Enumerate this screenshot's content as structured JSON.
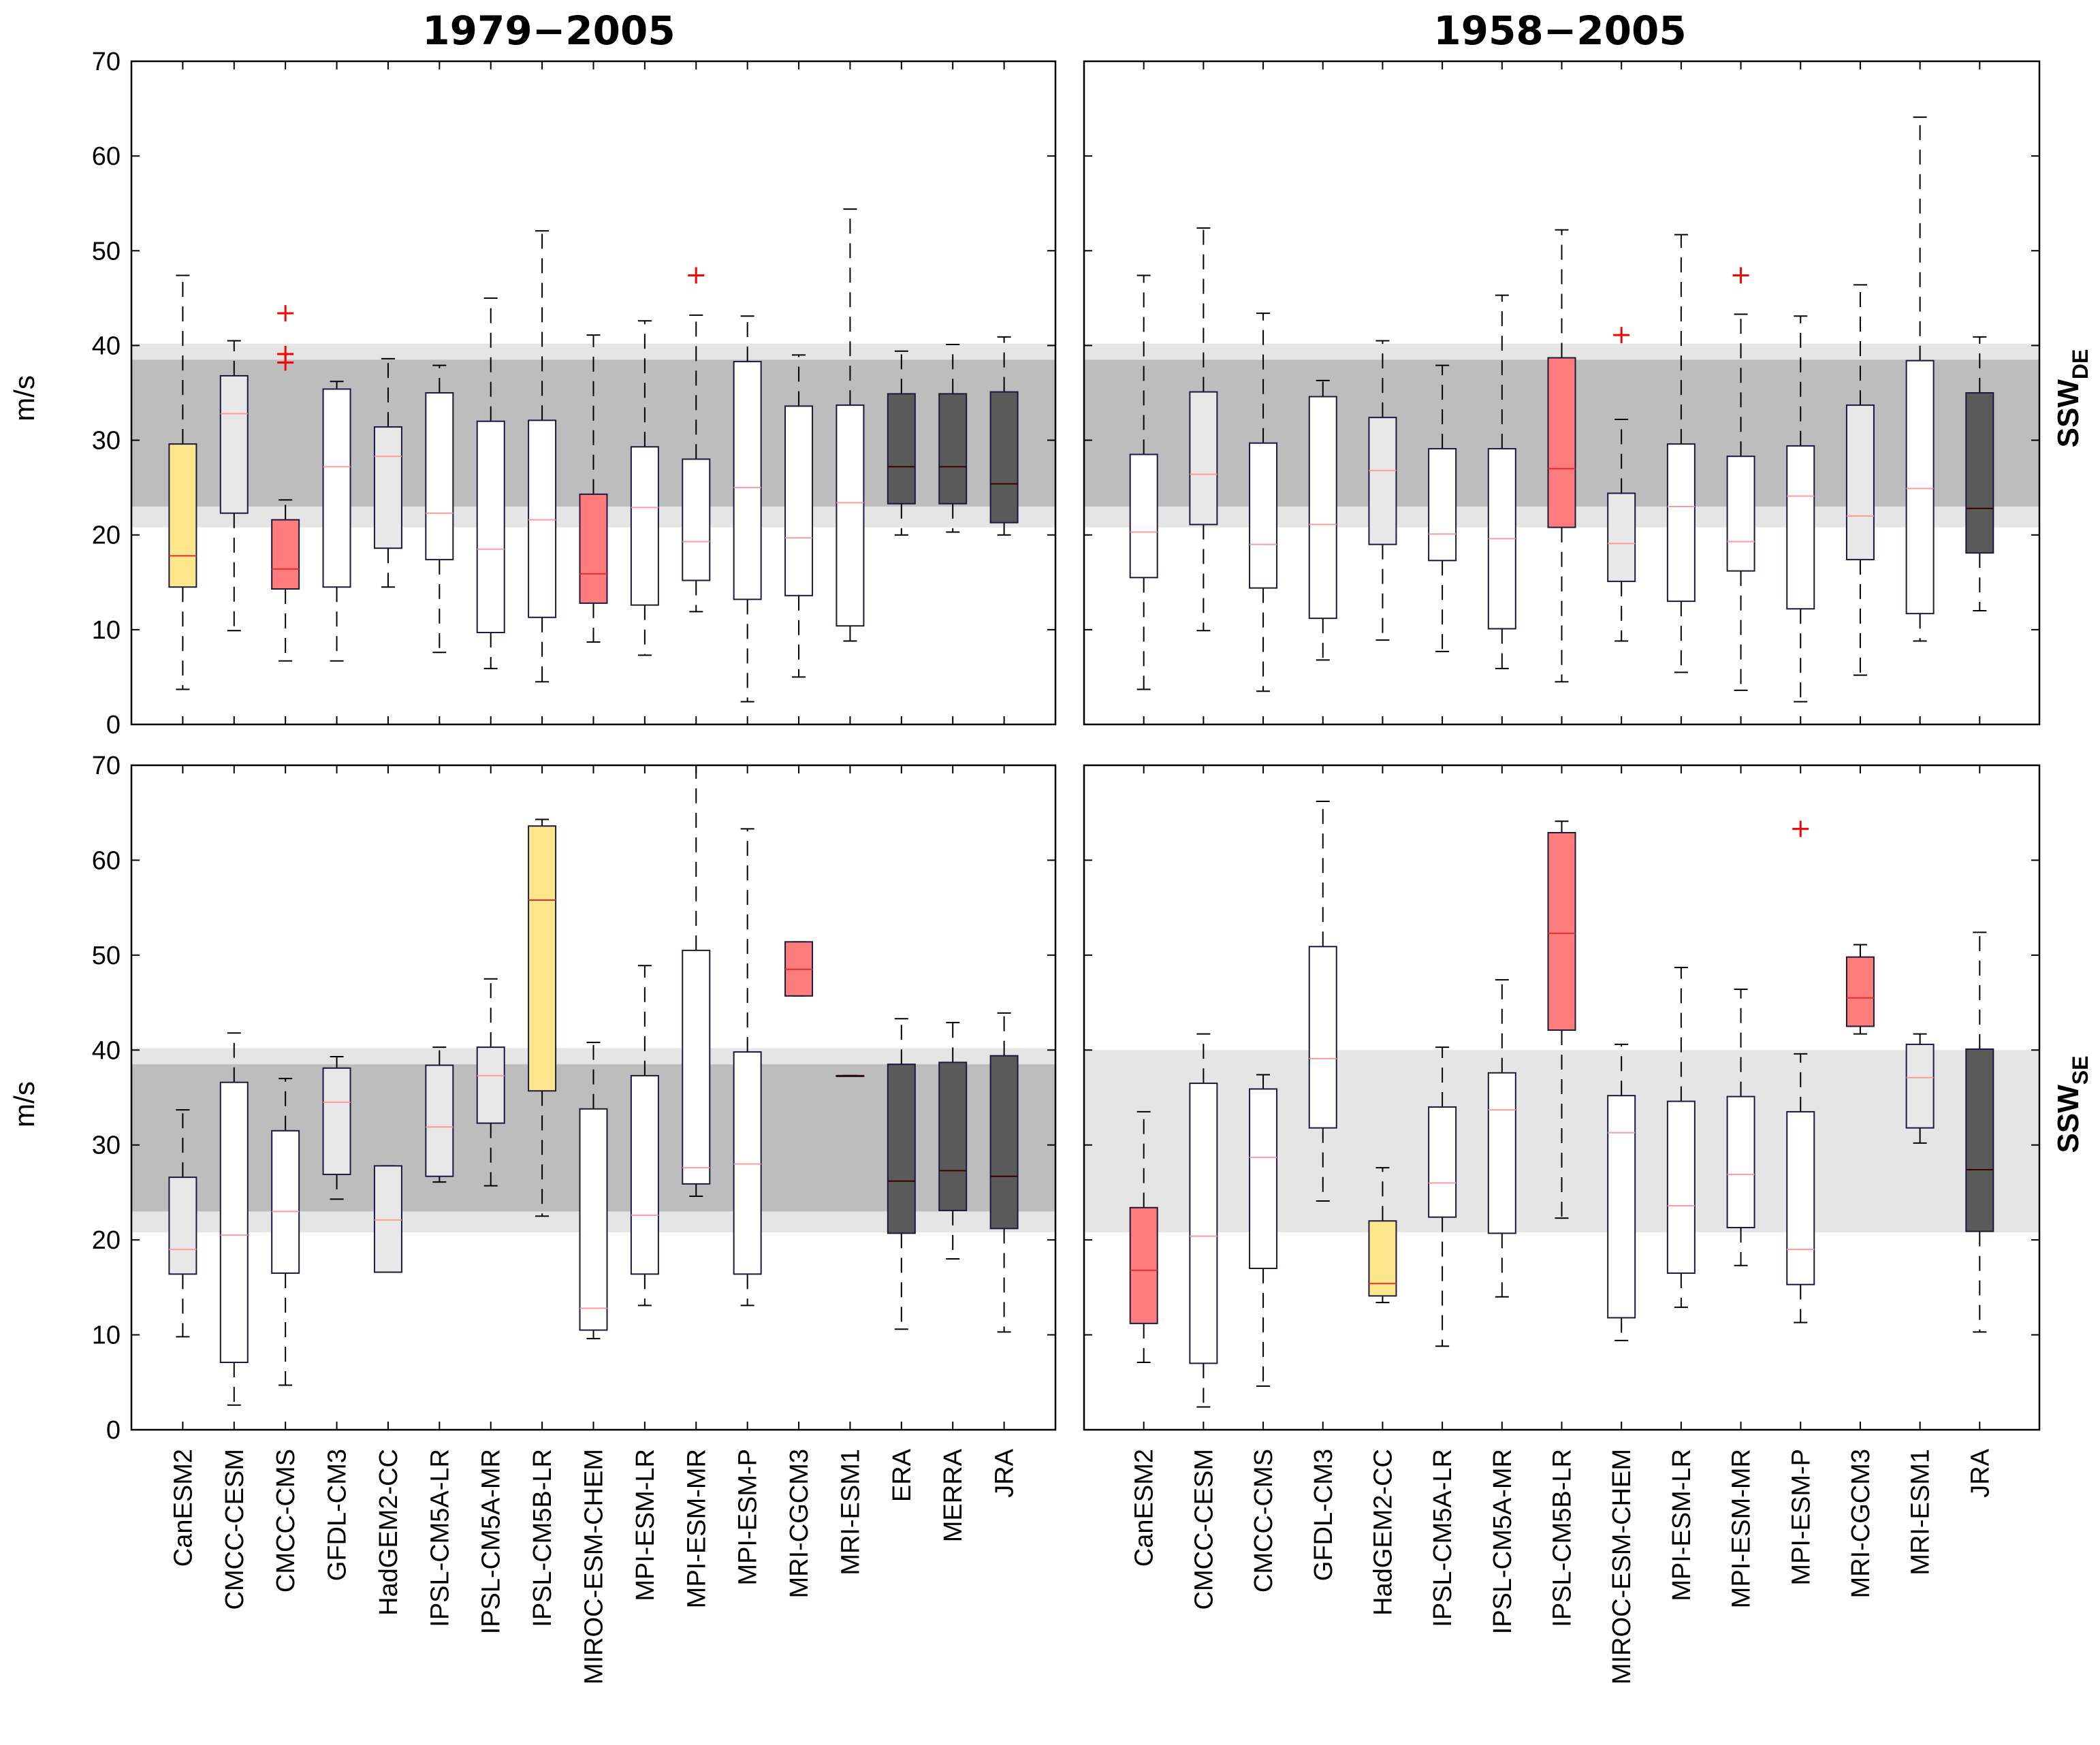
{
  "chart_data": {
    "type": "boxplot",
    "ylabel": "m/s",
    "ylim": [
      0,
      70
    ],
    "yticks": [
      0,
      10,
      20,
      30,
      40,
      50,
      60,
      70
    ],
    "col_titles": [
      "1979−2005",
      "1958−2005"
    ],
    "row_labels": [
      {
        "main": "SSW",
        "sub": "DE"
      },
      {
        "main": "SSW",
        "sub": "SE"
      }
    ],
    "colors": {
      "white": "#ffffff",
      "light": "#e8e8e8",
      "red": "#ff7c7c",
      "yellow": "#fde68c",
      "dark": "#5a5a5a",
      "band_outer": "#e5e5e5",
      "band_inner": "#bdbdbd",
      "median_red": "#e03030",
      "outlier": "#ff0000"
    },
    "panels": [
      {
        "name": "1979-2005 SSW DE",
        "band_outer": [
          20.8,
          40.2
        ],
        "band_inner": [
          23,
          38.5
        ],
        "categories": [
          "CanESM2",
          "CMCC-CESM",
          "CMCC-CMS",
          "GFDL-CM3",
          "HadGEM2-CC",
          "IPSL-CM5A-LR",
          "IPSL-CM5A-MR",
          "IPSL-CM5B-LR",
          "MIROC-ESM-CHEM",
          "MPI-ESM-LR",
          "MPI-ESM-MR",
          "MPI-ESM-P",
          "MRI-CGCM3",
          "MRI-ESM1",
          "ERA",
          "MERRA",
          "JRA"
        ],
        "boxes": [
          {
            "whislo": 3.7,
            "q1": 14.5,
            "med": 17.8,
            "q3": 29.6,
            "whishi": 47.4,
            "fill": "yellow",
            "fliers": []
          },
          {
            "whislo": 9.9,
            "q1": 22.3,
            "med": 32.8,
            "q3": 36.8,
            "whishi": 40.5,
            "fill": "light",
            "fliers": []
          },
          {
            "whislo": 6.7,
            "q1": 14.3,
            "med": 16.4,
            "q3": 21.6,
            "whishi": 23.7,
            "fill": "red",
            "fliers": [
              38.2,
              39.1,
              43.4
            ]
          },
          {
            "whislo": 6.7,
            "q1": 14.5,
            "med": 27.2,
            "q3": 35.4,
            "whishi": 36.2,
            "fill": "white",
            "fliers": []
          },
          {
            "whislo": 14.5,
            "q1": 18.6,
            "med": 28.3,
            "q3": 31.4,
            "whishi": 38.6,
            "fill": "light",
            "fliers": []
          },
          {
            "whislo": 7.6,
            "q1": 17.4,
            "med": 22.3,
            "q3": 35.0,
            "whishi": 37.9,
            "fill": "white",
            "fliers": []
          },
          {
            "whislo": 5.9,
            "q1": 9.7,
            "med": 18.5,
            "q3": 32.0,
            "whishi": 45.0,
            "fill": "white",
            "fliers": []
          },
          {
            "whislo": 4.5,
            "q1": 11.3,
            "med": 21.6,
            "q3": 32.1,
            "whishi": 52.1,
            "fill": "white",
            "fliers": []
          },
          {
            "whislo": 8.7,
            "q1": 12.8,
            "med": 15.9,
            "q3": 24.3,
            "whishi": 41.1,
            "fill": "red",
            "fliers": []
          },
          {
            "whislo": 7.3,
            "q1": 12.6,
            "med": 22.9,
            "q3": 29.3,
            "whishi": 42.6,
            "fill": "white",
            "fliers": []
          },
          {
            "whislo": 11.9,
            "q1": 15.2,
            "med": 19.3,
            "q3": 28.0,
            "whishi": 43.2,
            "fill": "white",
            "fliers": [
              47.4
            ]
          },
          {
            "whislo": 2.4,
            "q1": 13.2,
            "med": 25.0,
            "q3": 38.3,
            "whishi": 43.1,
            "fill": "white",
            "fliers": []
          },
          {
            "whislo": 5.0,
            "q1": 13.6,
            "med": 19.7,
            "q3": 33.6,
            "whishi": 39.0,
            "fill": "white",
            "fliers": []
          },
          {
            "whislo": 8.8,
            "q1": 10.4,
            "med": 23.4,
            "q3": 33.7,
            "whishi": 54.4,
            "fill": "white",
            "fliers": []
          },
          {
            "whislo": 20.0,
            "q1": 23.3,
            "med": 27.2,
            "q3": 34.9,
            "whishi": 39.4,
            "fill": "dark",
            "fliers": []
          },
          {
            "whislo": 20.3,
            "q1": 23.3,
            "med": 27.2,
            "q3": 34.9,
            "whishi": 40.1,
            "fill": "dark",
            "fliers": []
          },
          {
            "whislo": 20.0,
            "q1": 21.3,
            "med": 25.4,
            "q3": 35.1,
            "whishi": 40.9,
            "fill": "dark",
            "fliers": []
          }
        ]
      },
      {
        "name": "1958-2005 SSW DE",
        "band_outer": [
          20.8,
          40.2
        ],
        "band_inner": [
          23,
          38.5
        ],
        "categories": [
          "CanESM2",
          "CMCC-CESM",
          "CMCC-CMS",
          "GFDL-CM3",
          "HadGEM2-CC",
          "IPSL-CM5A-LR",
          "IPSL-CM5A-MR",
          "IPSL-CM5B-LR",
          "MIROC-ESM-CHEM",
          "MPI-ESM-LR",
          "MPI-ESM-MR",
          "MPI-ESM-P",
          "MRI-CGCM3",
          "MRI-ESM1",
          "JRA"
        ],
        "boxes": [
          {
            "whislo": 3.7,
            "q1": 15.5,
            "med": 20.3,
            "q3": 28.5,
            "whishi": 47.4,
            "fill": "white",
            "fliers": []
          },
          {
            "whislo": 9.9,
            "q1": 21.1,
            "med": 26.4,
            "q3": 35.1,
            "whishi": 52.4,
            "fill": "light",
            "fliers": []
          },
          {
            "whislo": 3.5,
            "q1": 14.4,
            "med": 19.0,
            "q3": 29.7,
            "whishi": 43.4,
            "fill": "white",
            "fliers": []
          },
          {
            "whislo": 6.8,
            "q1": 11.2,
            "med": 21.1,
            "q3": 34.6,
            "whishi": 36.3,
            "fill": "white",
            "fliers": []
          },
          {
            "whislo": 8.9,
            "q1": 19.0,
            "med": 26.8,
            "q3": 32.4,
            "whishi": 40.5,
            "fill": "light",
            "fliers": []
          },
          {
            "whislo": 7.7,
            "q1": 17.3,
            "med": 20.1,
            "q3": 29.1,
            "whishi": 37.9,
            "fill": "white",
            "fliers": []
          },
          {
            "whislo": 5.9,
            "q1": 10.1,
            "med": 19.6,
            "q3": 29.1,
            "whishi": 45.3,
            "fill": "white",
            "fliers": []
          },
          {
            "whislo": 4.5,
            "q1": 20.8,
            "med": 27.0,
            "q3": 38.7,
            "whishi": 52.2,
            "fill": "red",
            "fliers": []
          },
          {
            "whislo": 8.8,
            "q1": 15.1,
            "med": 19.1,
            "q3": 24.4,
            "whishi": 32.2,
            "fill": "light",
            "fliers": [
              41.1
            ]
          },
          {
            "whislo": 5.5,
            "q1": 13.0,
            "med": 23.0,
            "q3": 29.6,
            "whishi": 51.7,
            "fill": "white",
            "fliers": []
          },
          {
            "whislo": 3.6,
            "q1": 16.2,
            "med": 19.3,
            "q3": 28.3,
            "whishi": 43.3,
            "fill": "white",
            "fliers": [
              47.4
            ]
          },
          {
            "whislo": 2.4,
            "q1": 12.2,
            "med": 24.1,
            "q3": 29.4,
            "whishi": 43.1,
            "fill": "white",
            "fliers": []
          },
          {
            "whislo": 5.2,
            "q1": 17.4,
            "med": 22.0,
            "q3": 33.7,
            "whishi": 46.4,
            "fill": "light",
            "fliers": []
          },
          {
            "whislo": 8.8,
            "q1": 11.7,
            "med": 24.9,
            "q3": 38.4,
            "whishi": 64.1,
            "fill": "white",
            "fliers": []
          },
          {
            "whislo": 12.0,
            "q1": 18.1,
            "med": 22.8,
            "q3": 35.0,
            "whishi": 40.9,
            "fill": "dark",
            "fliers": []
          }
        ]
      },
      {
        "name": "1979-2005 SSW SE",
        "band_outer": [
          20.8,
          40.2
        ],
        "band_inner": [
          23,
          38.5
        ],
        "categories": [
          "CanESM2",
          "CMCC-CESM",
          "CMCC-CMS",
          "GFDL-CM3",
          "HadGEM2-CC",
          "IPSL-CM5A-LR",
          "IPSL-CM5A-MR",
          "IPSL-CM5B-LR",
          "MIROC-ESM-CHEM",
          "MPI-ESM-LR",
          "MPI-ESM-MR",
          "MPI-ESM-P",
          "MRI-CGCM3",
          "MRI-ESM1",
          "ERA",
          "MERRA",
          "JRA"
        ],
        "boxes": [
          {
            "whislo": 9.8,
            "q1": 16.4,
            "med": 19.0,
            "q3": 26.6,
            "whishi": 33.7,
            "fill": "light",
            "fliers": []
          },
          {
            "whislo": 2.6,
            "q1": 7.1,
            "med": 20.5,
            "q3": 36.6,
            "whishi": 41.8,
            "fill": "white",
            "fliers": []
          },
          {
            "whislo": 4.7,
            "q1": 16.5,
            "med": 23.0,
            "q3": 31.5,
            "whishi": 37.0,
            "fill": "white",
            "fliers": []
          },
          {
            "whislo": 24.3,
            "q1": 26.9,
            "med": 34.5,
            "q3": 38.1,
            "whishi": 39.3,
            "fill": "light",
            "fliers": []
          },
          {
            "whislo": 16.6,
            "q1": 16.6,
            "med": 22.1,
            "q3": 27.8,
            "whishi": 27.8,
            "fill": "light",
            "fliers": []
          },
          {
            "whislo": 26.1,
            "q1": 26.7,
            "med": 31.9,
            "q3": 38.4,
            "whishi": 40.3,
            "fill": "light",
            "fliers": []
          },
          {
            "whislo": 25.7,
            "q1": 32.3,
            "med": 37.3,
            "q3": 40.3,
            "whishi": 47.5,
            "fill": "light",
            "fliers": []
          },
          {
            "whislo": 22.5,
            "q1": 35.7,
            "med": 55.8,
            "q3": 63.6,
            "whishi": 64.3,
            "fill": "yellow",
            "fliers": []
          },
          {
            "whislo": 9.6,
            "q1": 10.5,
            "med": 12.8,
            "q3": 33.8,
            "whishi": 40.8,
            "fill": "white",
            "fliers": []
          },
          {
            "whislo": 13.1,
            "q1": 16.4,
            "med": 22.6,
            "q3": 37.3,
            "whishi": 48.9,
            "fill": "white",
            "fliers": []
          },
          {
            "whislo": 24.6,
            "q1": 25.9,
            "med": 27.6,
            "q3": 50.5,
            "whishi": 70.0,
            "fill": "white",
            "fliers": []
          },
          {
            "whislo": 13.1,
            "q1": 16.4,
            "med": 28.0,
            "q3": 39.8,
            "whishi": 63.3,
            "fill": "white",
            "fliers": []
          },
          {
            "whislo": 45.7,
            "q1": 45.7,
            "med": 48.5,
            "q3": 51.4,
            "whishi": 51.4,
            "fill": "red",
            "fliers": []
          },
          {
            "whislo": 37.3,
            "q1": 37.3,
            "med": 37.3,
            "q3": 37.3,
            "whishi": 37.3,
            "fill": "dark",
            "fliers": []
          },
          {
            "whislo": 10.6,
            "q1": 20.7,
            "med": 26.2,
            "q3": 38.5,
            "whishi": 43.3,
            "fill": "dark",
            "fliers": []
          },
          {
            "whislo": 18.0,
            "q1": 23.1,
            "med": 27.3,
            "q3": 38.7,
            "whishi": 42.9,
            "fill": "dark",
            "fliers": []
          },
          {
            "whislo": 10.3,
            "q1": 21.2,
            "med": 26.7,
            "q3": 39.4,
            "whishi": 43.9,
            "fill": "dark",
            "fliers": []
          }
        ]
      },
      {
        "name": "1958-2005 SSW SE",
        "band_outer": [
          20.8,
          40.0
        ],
        "band_inner": null,
        "categories": [
          "CanESM2",
          "CMCC-CESM",
          "CMCC-CMS",
          "GFDL-CM3",
          "HadGEM2-CC",
          "IPSL-CM5A-LR",
          "IPSL-CM5A-MR",
          "IPSL-CM5B-LR",
          "MIROC-ESM-CHEM",
          "MPI-ESM-LR",
          "MPI-ESM-MR",
          "MPI-ESM-P",
          "MRI-CGCM3",
          "MRI-ESM1",
          "JRA"
        ],
        "boxes": [
          {
            "whislo": 7.1,
            "q1": 11.2,
            "med": 16.8,
            "q3": 23.4,
            "whishi": 33.5,
            "fill": "red",
            "fliers": []
          },
          {
            "whislo": 2.4,
            "q1": 7.0,
            "med": 20.4,
            "q3": 36.5,
            "whishi": 41.7,
            "fill": "white",
            "fliers": []
          },
          {
            "whislo": 4.6,
            "q1": 17.0,
            "med": 28.7,
            "q3": 35.9,
            "whishi": 37.4,
            "fill": "white",
            "fliers": []
          },
          {
            "whislo": 24.1,
            "q1": 31.8,
            "med": 39.1,
            "q3": 50.9,
            "whishi": 66.2,
            "fill": "white",
            "fliers": []
          },
          {
            "whislo": 13.4,
            "q1": 14.1,
            "med": 15.4,
            "q3": 22.0,
            "whishi": 27.6,
            "fill": "yellow",
            "fliers": []
          },
          {
            "whislo": 8.8,
            "q1": 22.4,
            "med": 26.0,
            "q3": 34.0,
            "whishi": 40.3,
            "fill": "white",
            "fliers": []
          },
          {
            "whislo": 14.0,
            "q1": 20.7,
            "med": 33.7,
            "q3": 37.6,
            "whishi": 47.4,
            "fill": "white",
            "fliers": []
          },
          {
            "whislo": 22.3,
            "q1": 42.1,
            "med": 52.3,
            "q3": 62.9,
            "whishi": 64.1,
            "fill": "red",
            "fliers": []
          },
          {
            "whislo": 9.4,
            "q1": 11.8,
            "med": 31.3,
            "q3": 35.2,
            "whishi": 40.6,
            "fill": "white",
            "fliers": []
          },
          {
            "whislo": 12.9,
            "q1": 16.5,
            "med": 23.6,
            "q3": 34.6,
            "whishi": 48.7,
            "fill": "white",
            "fliers": []
          },
          {
            "whislo": 17.3,
            "q1": 21.3,
            "med": 26.9,
            "q3": 35.1,
            "whishi": 46.4,
            "fill": "white",
            "fliers": []
          },
          {
            "whislo": 11.3,
            "q1": 15.3,
            "med": 19.0,
            "q3": 33.5,
            "whishi": 39.6,
            "fill": "white",
            "fliers": [
              63.3
            ]
          },
          {
            "whislo": 41.7,
            "q1": 42.5,
            "med": 45.5,
            "q3": 49.8,
            "whishi": 51.1,
            "fill": "red",
            "fliers": []
          },
          {
            "whislo": 30.2,
            "q1": 31.8,
            "med": 37.1,
            "q3": 40.6,
            "whishi": 41.7,
            "fill": "light",
            "fliers": []
          },
          {
            "whislo": 10.3,
            "q1": 20.9,
            "med": 27.4,
            "q3": 40.1,
            "whishi": 52.4,
            "fill": "dark",
            "fliers": []
          }
        ]
      }
    ]
  }
}
